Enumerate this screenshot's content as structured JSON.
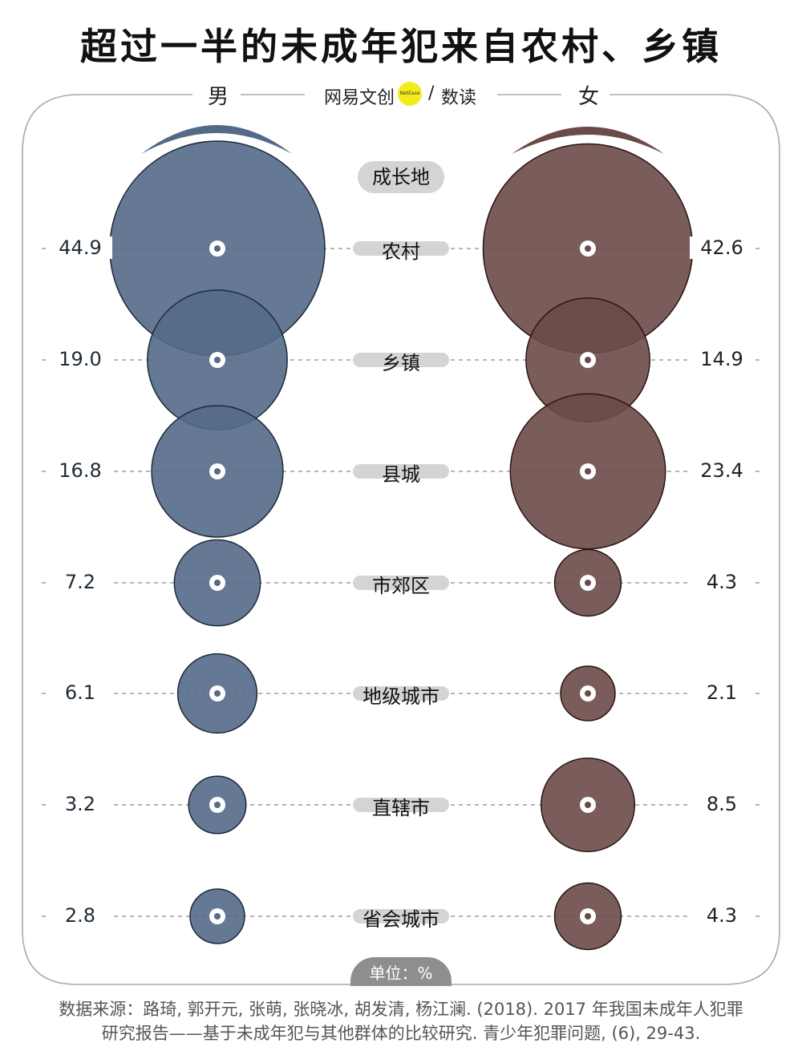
{
  "title": "超过一半的未成年犯来自农村、乡镇",
  "header": {
    "male_label": "男",
    "female_label": "女",
    "brand_left": "网易文创",
    "brand_dot": "NetEase",
    "brand_sep": "/",
    "brand_right": "数读"
  },
  "category_header": "成长地",
  "unit": "单位：%",
  "source_line1": "数据来源：路琦, 郭开元, 张萌, 张晓冰, 胡发清, 杨江澜. (2018). 2017 年我国未成年人犯罪",
  "source_line2": "研究报告——基于未成年犯与其他群体的比较研究. 青少年犯罪问题, (6), 29-43.",
  "colors": {
    "male": "#546a88",
    "male_stroke": "#1e2a3c",
    "female": "#6b4b48",
    "female_stroke": "#2a1513",
    "pill": "#d4d4d4",
    "brand_dot": "#f3ec1c"
  },
  "rows": [
    {
      "category": "农村",
      "male": "44.9",
      "female": "42.6"
    },
    {
      "category": "乡镇",
      "male": "19.0",
      "female": "14.9"
    },
    {
      "category": "县城",
      "male": "16.8",
      "female": "23.4"
    },
    {
      "category": "市郊区",
      "male": "7.2",
      "female": "4.3"
    },
    {
      "category": "地级城市",
      "male": "6.1",
      "female": "2.1"
    },
    {
      "category": "直辖市",
      "male": "3.2",
      "female": "8.5"
    },
    {
      "category": "省会城市",
      "male": "2.8",
      "female": "4.3"
    }
  ],
  "chart_data": {
    "type": "bubble",
    "title": "超过一半的未成年犯来自农村、乡镇",
    "categories": [
      "农村",
      "乡镇",
      "县城",
      "市郊区",
      "地级城市",
      "直辖市",
      "省会城市"
    ],
    "series": [
      {
        "name": "男",
        "values": [
          44.9,
          19.0,
          16.8,
          7.2,
          6.1,
          3.2,
          2.8
        ]
      },
      {
        "name": "女",
        "values": [
          42.6,
          14.9,
          23.4,
          4.3,
          2.1,
          8.5,
          4.3
        ]
      }
    ],
    "xlabel": "",
    "ylabel": "成长地",
    "unit": "%",
    "legend": [
      "男",
      "女"
    ],
    "legend_position": "top"
  }
}
